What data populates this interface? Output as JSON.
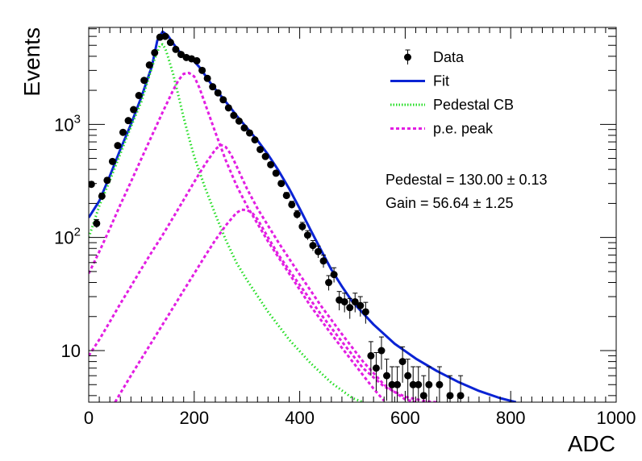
{
  "chart_data": {
    "type": "scatter",
    "xlabel": "ADC",
    "ylabel": "Events",
    "xlim": [
      0,
      1000
    ],
    "ylim": [
      3.5,
      7200
    ],
    "yscale": "log",
    "x_ticks": [
      0,
      200,
      400,
      600,
      800,
      1000
    ],
    "y_ticks": [
      {
        "value": 10,
        "base": "10",
        "exp": ""
      },
      {
        "value": 100,
        "base": "10",
        "exp": "2"
      },
      {
        "value": 1000,
        "base": "10",
        "exp": "3"
      }
    ],
    "legend": {
      "placement": "top-right",
      "entries": [
        {
          "label": "Data",
          "style": "marker",
          "color": "#000000"
        },
        {
          "label": "Fit",
          "style": "line",
          "color": "#0a23d4"
        },
        {
          "label": "Pedestal CB",
          "style": "dotted",
          "color": "#22dd22"
        },
        {
          "label": "p.e. peak",
          "style": "dashed",
          "color": "#e21ee2"
        }
      ]
    },
    "annotations": [
      {
        "text": "Pedestal = 130.00 ± 0.13"
      },
      {
        "text": "Gain = 56.64 ± 1.25"
      }
    ],
    "data_points": [
      [
        5,
        295,
        17
      ],
      [
        15,
        133,
        11
      ],
      [
        25,
        232,
        15
      ],
      [
        35,
        320,
        18
      ],
      [
        45,
        470,
        22
      ],
      [
        55,
        650,
        26
      ],
      [
        65,
        850,
        30
      ],
      [
        75,
        1080,
        33
      ],
      [
        85,
        1350,
        37
      ],
      [
        95,
        1800,
        42
      ],
      [
        105,
        2450,
        50
      ],
      [
        115,
        3350,
        58
      ],
      [
        125,
        4300,
        66
      ],
      [
        135,
        5900,
        77
      ],
      [
        145,
        6000,
        77
      ],
      [
        155,
        5300,
        73
      ],
      [
        165,
        4600,
        68
      ],
      [
        175,
        4150,
        64
      ],
      [
        185,
        3900,
        62
      ],
      [
        195,
        3800,
        62
      ],
      [
        205,
        3650,
        60
      ],
      [
        215,
        3000,
        55
      ],
      [
        225,
        2550,
        50
      ],
      [
        235,
        2150,
        46
      ],
      [
        245,
        1900,
        44
      ],
      [
        255,
        1650,
        41
      ],
      [
        265,
        1400,
        37
      ],
      [
        275,
        1200,
        35
      ],
      [
        285,
        1070,
        33
      ],
      [
        295,
        930,
        30
      ],
      [
        305,
        840,
        29
      ],
      [
        315,
        730,
        27
      ],
      [
        325,
        600,
        25
      ],
      [
        335,
        520,
        23
      ],
      [
        345,
        440,
        21
      ],
      [
        355,
        370,
        19
      ],
      [
        365,
        300,
        17
      ],
      [
        375,
        235,
        15
      ],
      [
        385,
        195,
        14
      ],
      [
        395,
        160,
        13
      ],
      [
        405,
        125,
        11
      ],
      [
        415,
        105,
        10
      ],
      [
        425,
        85,
        9
      ],
      [
        435,
        75,
        9
      ],
      [
        445,
        62,
        8
      ],
      [
        455,
        40,
        6
      ],
      [
        465,
        47,
        7
      ],
      [
        475,
        28,
        5.3
      ],
      [
        485,
        27,
        5.2
      ],
      [
        495,
        24,
        4.9
      ],
      [
        505,
        27,
        5.2
      ],
      [
        515,
        25,
        5
      ],
      [
        525,
        22,
        4.7
      ],
      [
        535,
        9,
        3
      ],
      [
        545,
        7,
        2.6
      ],
      [
        555,
        10,
        3.2
      ],
      [
        565,
        6,
        2.4
      ],
      [
        575,
        5,
        2.2
      ],
      [
        585,
        5,
        2.2
      ],
      [
        595,
        8,
        2.8
      ],
      [
        605,
        6,
        2.4
      ],
      [
        615,
        5,
        2.2
      ],
      [
        625,
        5,
        2.2
      ],
      [
        635,
        4,
        2
      ],
      [
        645,
        5,
        2.2
      ],
      [
        665,
        5,
        2.2
      ],
      [
        685,
        4,
        2
      ],
      [
        705,
        4,
        2
      ]
    ],
    "series": [
      {
        "name": "Fit",
        "color": "#0a23d4",
        "x": [
          0,
          20,
          40,
          60,
          80,
          100,
          120,
          130,
          140,
          150,
          160,
          170,
          180,
          190,
          200,
          210,
          220,
          230,
          240,
          250,
          260,
          270,
          280,
          300,
          320,
          340,
          360,
          380,
          400,
          420,
          440,
          460,
          480,
          500,
          540,
          580,
          620,
          660,
          700,
          740,
          780,
          810
        ],
        "y": [
          150,
          210,
          350,
          600,
          1000,
          1750,
          3300,
          5500,
          6600,
          6100,
          5200,
          4500,
          4000,
          3850,
          3600,
          3200,
          2750,
          2350,
          2050,
          1800,
          1580,
          1380,
          1200,
          930,
          720,
          540,
          390,
          270,
          180,
          118,
          78,
          52,
          37,
          27,
          17,
          11.5,
          8.5,
          6.6,
          5.3,
          4.4,
          3.8,
          3.5
        ]
      },
      {
        "name": "Pedestal CB",
        "color": "#22dd22",
        "x": [
          0,
          20,
          40,
          60,
          80,
          100,
          115,
          125,
          135,
          140,
          145,
          150,
          160,
          170,
          180,
          190,
          200,
          220,
          240,
          260,
          280,
          300,
          340,
          380,
          420,
          460,
          500,
          520
        ],
        "y": [
          100,
          190,
          320,
          550,
          950,
          1600,
          2700,
          3800,
          5000,
          5100,
          4700,
          4000,
          2800,
          1800,
          1150,
          760,
          520,
          280,
          160,
          95,
          60,
          42,
          22,
          12.5,
          7.8,
          5.2,
          3.8,
          3.5
        ]
      },
      {
        "name": "p.e. peak 1",
        "color": "#e21ee2",
        "x": [
          0,
          20,
          40,
          60,
          80,
          100,
          120,
          140,
          160,
          170,
          180,
          190,
          200,
          210,
          220,
          240,
          260,
          280,
          300,
          340,
          380,
          420,
          460,
          500,
          540,
          560
        ],
        "y": [
          48,
          75,
          120,
          195,
          310,
          500,
          800,
          1280,
          2000,
          2450,
          2800,
          2850,
          2650,
          2100,
          1550,
          850,
          480,
          290,
          190,
          92,
          48,
          25,
          14,
          8,
          4.6,
          3.6
        ]
      },
      {
        "name": "p.e. peak 2",
        "color": "#e21ee2",
        "x": [
          0,
          20,
          40,
          60,
          80,
          100,
          120,
          140,
          160,
          180,
          200,
          220,
          240,
          250,
          260,
          270,
          280,
          300,
          320,
          360,
          400,
          440,
          480,
          520,
          560,
          600,
          620
        ],
        "y": [
          9,
          12.5,
          18,
          26,
          37,
          53,
          75,
          105,
          150,
          215,
          310,
          440,
          600,
          660,
          630,
          540,
          430,
          270,
          180,
          90,
          47,
          25,
          14,
          8,
          5,
          3.7,
          3.5
        ]
      },
      {
        "name": "p.e. peak 3",
        "color": "#e21ee2",
        "x": [
          50,
          60,
          80,
          100,
          120,
          140,
          160,
          180,
          200,
          220,
          240,
          260,
          280,
          290,
          300,
          310,
          320,
          340,
          360,
          400,
          440,
          480,
          520,
          560,
          600,
          640,
          660
        ],
        "y": [
          3.5,
          4.2,
          6,
          8.5,
          12,
          17,
          24,
          34,
          48,
          68,
          95,
          128,
          165,
          176,
          175,
          165,
          145,
          100,
          70,
          38,
          21,
          12,
          7,
          4.8,
          3.9,
          3.55,
          3.5
        ]
      }
    ]
  }
}
